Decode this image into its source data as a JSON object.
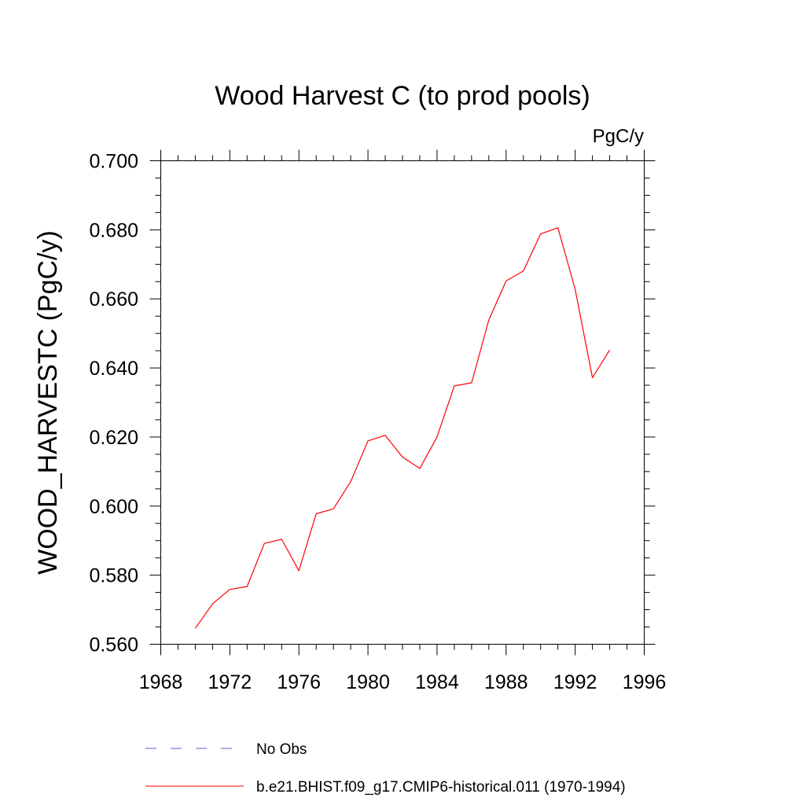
{
  "chart_data": {
    "type": "line",
    "title": "Wood Harvest C (to prod pools)",
    "units": "PgC/y",
    "ylabel": "WOOD_HARVESTC  (PgC/y)",
    "xlabel": "",
    "xlim": [
      1968,
      1996
    ],
    "ylim": [
      0.56,
      0.7
    ],
    "xticks": [
      1968,
      1972,
      1976,
      1980,
      1984,
      1988,
      1992,
      1996
    ],
    "xtick_labels": [
      "1968",
      "1972",
      "1976",
      "1980",
      "1984",
      "1988",
      "1992",
      "1996"
    ],
    "yticks": [
      0.56,
      0.58,
      0.6,
      0.62,
      0.64,
      0.66,
      0.68,
      0.7
    ],
    "ytick_labels": [
      "0.560",
      "0.580",
      "0.600",
      "0.620",
      "0.640",
      "0.660",
      "0.680",
      "0.700"
    ],
    "x_minor_step": 1,
    "y_minor_step": 0.005,
    "grid": false,
    "legend_position": "bottom",
    "series": [
      {
        "name": "b.e21.BHIST.f09_g17.CMIP6-historical.011 (1970-1994)",
        "color": "#ff0000",
        "style": "solid",
        "x": [
          1970,
          1971,
          1972,
          1973,
          1974,
          1975,
          1976,
          1977,
          1978,
          1979,
          1980,
          1981,
          1982,
          1983,
          1984,
          1985,
          1986,
          1987,
          1988,
          1989,
          1990,
          1991,
          1992,
          1993,
          1994
        ],
        "y": [
          0.5646,
          0.5717,
          0.5759,
          0.5767,
          0.5892,
          0.5904,
          0.5813,
          0.5978,
          0.5992,
          0.6071,
          0.6189,
          0.6205,
          0.6142,
          0.6109,
          0.62,
          0.6348,
          0.6357,
          0.6539,
          0.6652,
          0.6681,
          0.6788,
          0.6806,
          0.6628,
          0.6372,
          0.6452
        ]
      }
    ],
    "legend": [
      {
        "label": "No Obs",
        "color": "#6a5acd",
        "style": "dashed"
      },
      {
        "label": "b.e21.BHIST.f09_g17.CMIP6-historical.011 (1970-1994)",
        "color": "#ff0000",
        "style": "solid"
      }
    ]
  }
}
